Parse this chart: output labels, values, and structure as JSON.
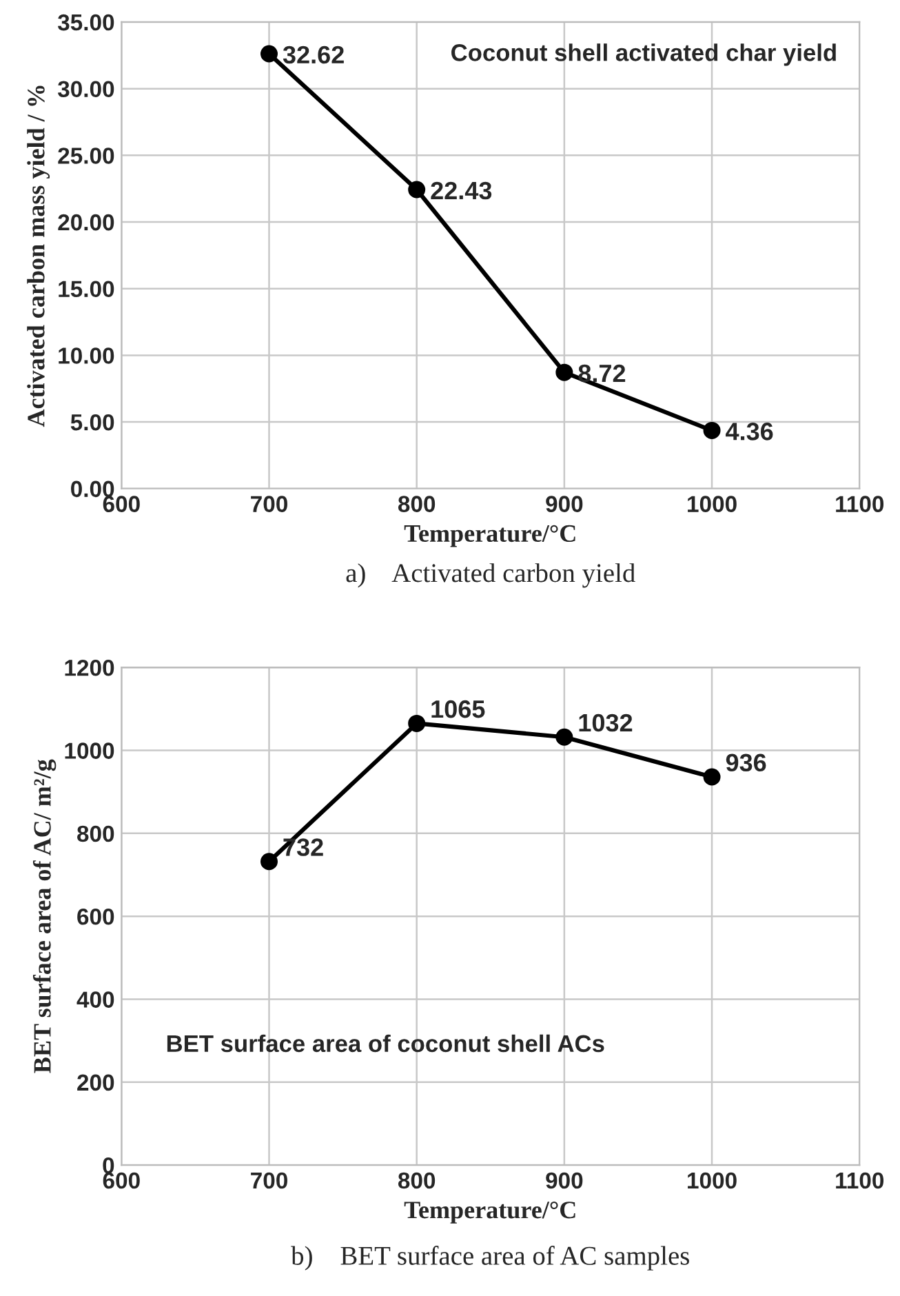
{
  "chart_data": [
    {
      "type": "line",
      "title": "a)    Activated carbon yield",
      "xlabel": "Temperature/°C",
      "ylabel": "Activated carbon mass yield / %",
      "x": [
        700,
        800,
        900,
        1000
      ],
      "series": [
        {
          "color": "#000000",
          "values": [
            32.62,
            22.43,
            8.72,
            4.36
          ]
        }
      ],
      "xlim": [
        600,
        1100
      ],
      "xticks": [
        600,
        700,
        800,
        900,
        1000,
        1100
      ],
      "ylim": [
        0,
        35
      ],
      "yticks": [
        {
          "value": 0,
          "label": "0.00"
        },
        {
          "value": 5,
          "label": "5.00"
        },
        {
          "value": 10,
          "label": "10.00"
        },
        {
          "value": 15,
          "label": "15.00"
        },
        {
          "value": 20,
          "label": "20.00"
        },
        {
          "value": 25,
          "label": "25.00"
        },
        {
          "value": 30,
          "label": "30.00"
        },
        {
          "value": 35,
          "label": "35.00"
        }
      ],
      "grid": true,
      "marker": "circle",
      "line_style": "solid",
      "data_labels": true,
      "annotations": [
        "Coconut shell activated char yield"
      ]
    },
    {
      "type": "line",
      "title": "b)    BET surface area of AC samples",
      "xlabel": "Temperature/°C",
      "ylabel": "BET surface area of AC/ m²/g",
      "x": [
        700,
        800,
        900,
        1000
      ],
      "series": [
        {
          "color": "#000000",
          "values": [
            732,
            1065,
            1032,
            936
          ]
        }
      ],
      "xlim": [
        600,
        1100
      ],
      "xticks": [
        600,
        700,
        800,
        900,
        1000,
        1100
      ],
      "ylim": [
        0,
        1200
      ],
      "yticks": [
        0,
        200,
        400,
        600,
        800,
        1000,
        1200
      ],
      "grid": true,
      "marker": "circle",
      "line_style": "solid",
      "data_labels": true,
      "annotations": [
        "BET surface area of coconut shell ACs"
      ]
    }
  ]
}
